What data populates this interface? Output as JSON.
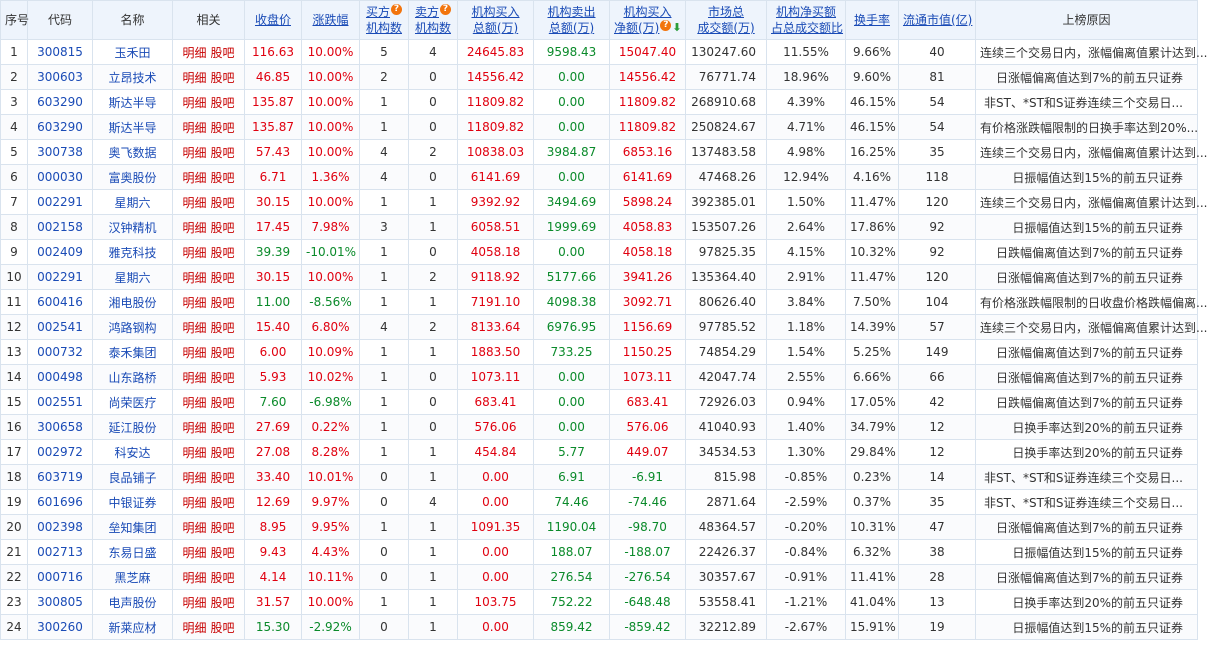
{
  "headers": {
    "seq": "序号",
    "code": "代码",
    "name": "名称",
    "rel": "相关",
    "close": "收盘价",
    "chg": "涨跌幅",
    "buy_org_1": "买方",
    "buy_org_2": "机构数",
    "sell_org_1": "卖方",
    "sell_org_2": "机构数",
    "inst_buy_1": "机构买入",
    "inst_buy_2": "总额(万)",
    "inst_sell_1": "机构卖出",
    "inst_sell_2": "总额(万)",
    "net_1": "机构买入",
    "net_2": "净额(万)",
    "vol_1": "市场总",
    "vol_2": "成交额(万)",
    "ratio_1": "机构净买额",
    "ratio_2": "占总成交额比",
    "turnover": "换手率",
    "mcap": "流通市值(亿)",
    "reason": "上榜原因"
  },
  "icons": {
    "help": "?",
    "sort_desc": "⬇"
  },
  "rel_links": {
    "detail": "明细",
    "forum": "股吧"
  },
  "rows": [
    {
      "seq": "1",
      "code": "300815",
      "name": "玉禾田",
      "close": "116.63",
      "chg": "10.00%",
      "dir": "up",
      "buy": "5",
      "sell": "4",
      "ib": "24645.83",
      "is": "9598.43",
      "net": "15047.40",
      "vol": "130247.60",
      "ratio": "11.55%",
      "turn": "9.66%",
      "mcap": "40",
      "reason": "连续三个交易日内，涨幅偏离值累计达到..."
    },
    {
      "seq": "2",
      "code": "300603",
      "name": "立昂技术",
      "close": "46.85",
      "chg": "10.00%",
      "dir": "up",
      "buy": "2",
      "sell": "0",
      "ib": "14556.42",
      "is": "0.00",
      "net": "14556.42",
      "vol": "76771.74",
      "ratio": "18.96%",
      "turn": "9.60%",
      "mcap": "81",
      "reason": "日涨幅偏离值达到7%的前五只证券"
    },
    {
      "seq": "3",
      "code": "603290",
      "name": "斯达半导",
      "close": "135.87",
      "chg": "10.00%",
      "dir": "up",
      "buy": "1",
      "sell": "0",
      "ib": "11809.82",
      "is": "0.00",
      "net": "11809.82",
      "vol": "268910.68",
      "ratio": "4.39%",
      "turn": "46.15%",
      "mcap": "54",
      "reason": "非ST、*ST和S证券连续三个交易日..."
    },
    {
      "seq": "4",
      "code": "603290",
      "name": "斯达半导",
      "close": "135.87",
      "chg": "10.00%",
      "dir": "up",
      "buy": "1",
      "sell": "0",
      "ib": "11809.82",
      "is": "0.00",
      "net": "11809.82",
      "vol": "250824.67",
      "ratio": "4.71%",
      "turn": "46.15%",
      "mcap": "54",
      "reason": "有价格涨跌幅限制的日换手率达到20%..."
    },
    {
      "seq": "5",
      "code": "300738",
      "name": "奥飞数据",
      "close": "57.43",
      "chg": "10.00%",
      "dir": "up",
      "buy": "4",
      "sell": "2",
      "ib": "10838.03",
      "is": "3984.87",
      "net": "6853.16",
      "vol": "137483.58",
      "ratio": "4.98%",
      "turn": "16.25%",
      "mcap": "35",
      "reason": "连续三个交易日内，涨幅偏离值累计达到..."
    },
    {
      "seq": "6",
      "code": "000030",
      "name": "富奥股份",
      "close": "6.71",
      "chg": "1.36%",
      "dir": "up",
      "buy": "4",
      "sell": "0",
      "ib": "6141.69",
      "is": "0.00",
      "net": "6141.69",
      "vol": "47468.26",
      "ratio": "12.94%",
      "turn": "4.16%",
      "mcap": "118",
      "reason": "日振幅值达到15%的前五只证券"
    },
    {
      "seq": "7",
      "code": "002291",
      "name": "星期六",
      "close": "30.15",
      "chg": "10.00%",
      "dir": "up",
      "buy": "1",
      "sell": "1",
      "ib": "9392.92",
      "is": "3494.69",
      "net": "5898.24",
      "vol": "392385.01",
      "ratio": "1.50%",
      "turn": "11.47%",
      "mcap": "120",
      "reason": "连续三个交易日内，涨幅偏离值累计达到..."
    },
    {
      "seq": "8",
      "code": "002158",
      "name": "汉钟精机",
      "close": "17.45",
      "chg": "7.98%",
      "dir": "up",
      "buy": "3",
      "sell": "1",
      "ib": "6058.51",
      "is": "1999.69",
      "net": "4058.83",
      "vol": "153507.26",
      "ratio": "2.64%",
      "turn": "17.86%",
      "mcap": "92",
      "reason": "日振幅值达到15%的前五只证券"
    },
    {
      "seq": "9",
      "code": "002409",
      "name": "雅克科技",
      "close": "39.39",
      "chg": "-10.01%",
      "dir": "down",
      "buy": "1",
      "sell": "0",
      "ib": "4058.18",
      "is": "0.00",
      "net": "4058.18",
      "vol": "97825.35",
      "ratio": "4.15%",
      "turn": "10.32%",
      "mcap": "92",
      "reason": "日跌幅偏离值达到7%的前五只证券"
    },
    {
      "seq": "10",
      "code": "002291",
      "name": "星期六",
      "close": "30.15",
      "chg": "10.00%",
      "dir": "up",
      "buy": "1",
      "sell": "2",
      "ib": "9118.92",
      "is": "5177.66",
      "net": "3941.26",
      "vol": "135364.40",
      "ratio": "2.91%",
      "turn": "11.47%",
      "mcap": "120",
      "reason": "日涨幅偏离值达到7%的前五只证券"
    },
    {
      "seq": "11",
      "code": "600416",
      "name": "湘电股份",
      "close": "11.00",
      "chg": "-8.56%",
      "dir": "down",
      "buy": "1",
      "sell": "1",
      "ib": "7191.10",
      "is": "4098.38",
      "net": "3092.71",
      "vol": "80626.40",
      "ratio": "3.84%",
      "turn": "7.50%",
      "mcap": "104",
      "reason": "有价格涨跌幅限制的日收盘价格跌幅偏离..."
    },
    {
      "seq": "12",
      "code": "002541",
      "name": "鸿路钢构",
      "close": "15.40",
      "chg": "6.80%",
      "dir": "up",
      "buy": "4",
      "sell": "2",
      "ib": "8133.64",
      "is": "6976.95",
      "net": "1156.69",
      "vol": "97785.52",
      "ratio": "1.18%",
      "turn": "14.39%",
      "mcap": "57",
      "reason": "连续三个交易日内，涨幅偏离值累计达到..."
    },
    {
      "seq": "13",
      "code": "000732",
      "name": "泰禾集团",
      "close": "6.00",
      "chg": "10.09%",
      "dir": "up",
      "buy": "1",
      "sell": "1",
      "ib": "1883.50",
      "is": "733.25",
      "net": "1150.25",
      "vol": "74854.29",
      "ratio": "1.54%",
      "turn": "5.25%",
      "mcap": "149",
      "reason": "日涨幅偏离值达到7%的前五只证券"
    },
    {
      "seq": "14",
      "code": "000498",
      "name": "山东路桥",
      "close": "5.93",
      "chg": "10.02%",
      "dir": "up",
      "buy": "1",
      "sell": "0",
      "ib": "1073.11",
      "is": "0.00",
      "net": "1073.11",
      "vol": "42047.74",
      "ratio": "2.55%",
      "turn": "6.66%",
      "mcap": "66",
      "reason": "日涨幅偏离值达到7%的前五只证券"
    },
    {
      "seq": "15",
      "code": "002551",
      "name": "尚荣医疗",
      "close": "7.60",
      "chg": "-6.98%",
      "dir": "down",
      "buy": "1",
      "sell": "0",
      "ib": "683.41",
      "is": "0.00",
      "net": "683.41",
      "vol": "72926.03",
      "ratio": "0.94%",
      "turn": "17.05%",
      "mcap": "42",
      "reason": "日跌幅偏离值达到7%的前五只证券"
    },
    {
      "seq": "16",
      "code": "300658",
      "name": "延江股份",
      "close": "27.69",
      "chg": "0.22%",
      "dir": "up",
      "buy": "1",
      "sell": "0",
      "ib": "576.06",
      "is": "0.00",
      "net": "576.06",
      "vol": "41040.93",
      "ratio": "1.40%",
      "turn": "34.79%",
      "mcap": "12",
      "reason": "日换手率达到20%的前五只证券"
    },
    {
      "seq": "17",
      "code": "002972",
      "name": "科安达",
      "close": "27.08",
      "chg": "8.28%",
      "dir": "up",
      "buy": "1",
      "sell": "1",
      "ib": "454.84",
      "is": "5.77",
      "net": "449.07",
      "vol": "34534.53",
      "ratio": "1.30%",
      "turn": "29.84%",
      "mcap": "12",
      "reason": "日换手率达到20%的前五只证券"
    },
    {
      "seq": "18",
      "code": "603719",
      "name": "良品铺子",
      "close": "33.40",
      "chg": "10.01%",
      "dir": "up",
      "buy": "0",
      "sell": "1",
      "ib": "0.00",
      "is": "6.91",
      "net": "-6.91",
      "vol": "815.98",
      "ratio": "-0.85%",
      "turn": "0.23%",
      "mcap": "14",
      "reason": "非ST、*ST和S证券连续三个交易日..."
    },
    {
      "seq": "19",
      "code": "601696",
      "name": "中银证券",
      "close": "12.69",
      "chg": "9.97%",
      "dir": "up",
      "buy": "0",
      "sell": "4",
      "ib": "0.00",
      "is": "74.46",
      "net": "-74.46",
      "vol": "2871.64",
      "ratio": "-2.59%",
      "turn": "0.37%",
      "mcap": "35",
      "reason": "非ST、*ST和S证券连续三个交易日..."
    },
    {
      "seq": "20",
      "code": "002398",
      "name": "垒知集团",
      "close": "8.95",
      "chg": "9.95%",
      "dir": "up",
      "buy": "1",
      "sell": "1",
      "ib": "1091.35",
      "is": "1190.04",
      "net": "-98.70",
      "vol": "48364.57",
      "ratio": "-0.20%",
      "turn": "10.31%",
      "mcap": "47",
      "reason": "日涨幅偏离值达到7%的前五只证券"
    },
    {
      "seq": "21",
      "code": "002713",
      "name": "东易日盛",
      "close": "9.43",
      "chg": "4.43%",
      "dir": "up",
      "buy": "0",
      "sell": "1",
      "ib": "0.00",
      "is": "188.07",
      "net": "-188.07",
      "vol": "22426.37",
      "ratio": "-0.84%",
      "turn": "6.32%",
      "mcap": "38",
      "reason": "日振幅值达到15%的前五只证券"
    },
    {
      "seq": "22",
      "code": "000716",
      "name": "黑芝麻",
      "close": "4.14",
      "chg": "10.11%",
      "dir": "up",
      "buy": "0",
      "sell": "1",
      "ib": "0.00",
      "is": "276.54",
      "net": "-276.54",
      "vol": "30357.67",
      "ratio": "-0.91%",
      "turn": "11.41%",
      "mcap": "28",
      "reason": "日涨幅偏离值达到7%的前五只证券"
    },
    {
      "seq": "23",
      "code": "300805",
      "name": "电声股份",
      "close": "31.57",
      "chg": "10.00%",
      "dir": "up",
      "buy": "1",
      "sell": "1",
      "ib": "103.75",
      "is": "752.22",
      "net": "-648.48",
      "vol": "53558.41",
      "ratio": "-1.21%",
      "turn": "41.04%",
      "mcap": "13",
      "reason": "日换手率达到20%的前五只证券"
    },
    {
      "seq": "24",
      "code": "300260",
      "name": "新莱应材",
      "close": "15.30",
      "chg": "-2.92%",
      "dir": "down",
      "buy": "0",
      "sell": "1",
      "ib": "0.00",
      "is": "859.42",
      "net": "-859.42",
      "vol": "32212.89",
      "ratio": "-2.67%",
      "turn": "15.91%",
      "mcap": "19",
      "reason": "日振幅值达到15%的前五只证券"
    }
  ],
  "colors": {
    "up": "#e0000f",
    "down": "#0a8a2a",
    "link": "#1a4bb6",
    "rel": "#c80000",
    "header_bg": "#eef4fc",
    "border": "#d9e3ee"
  }
}
